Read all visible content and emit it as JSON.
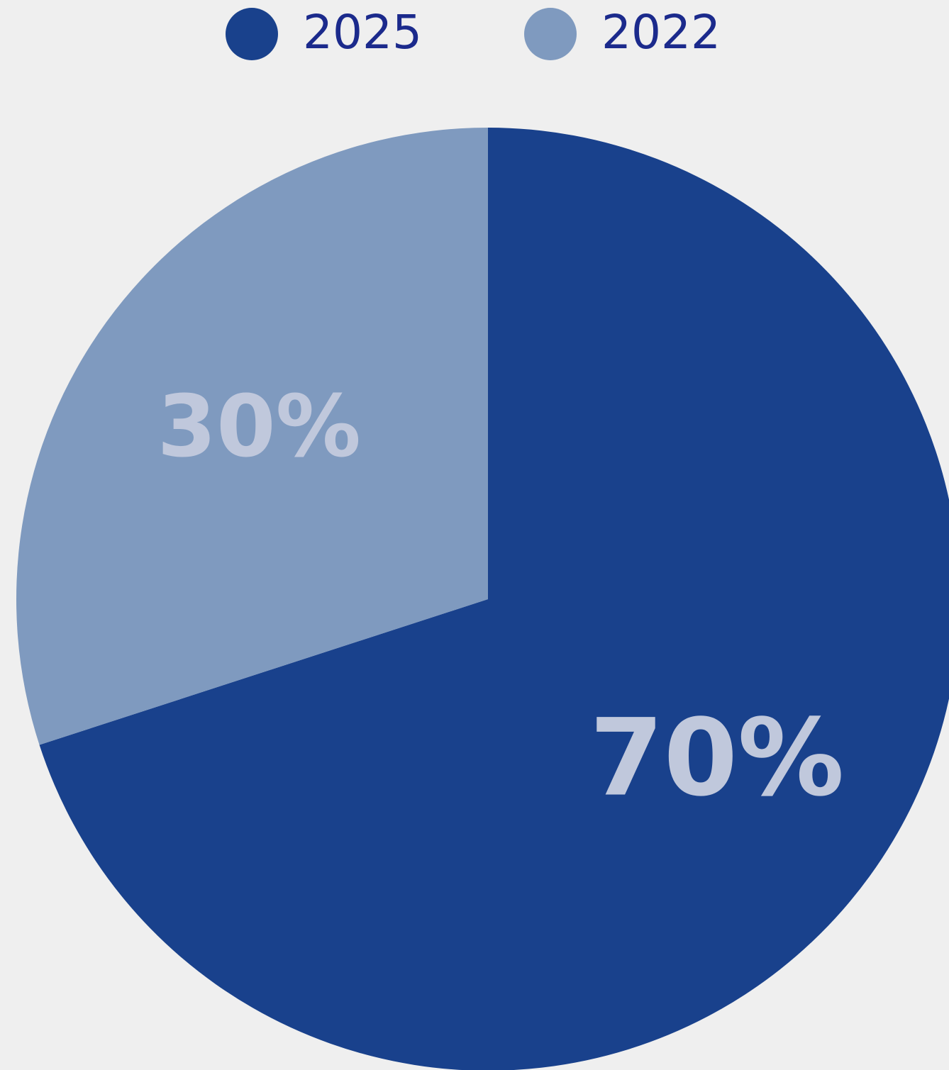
{
  "chart_data": {
    "type": "pie",
    "categories": [
      "2025",
      "2022"
    ],
    "values": [
      70,
      30
    ],
    "value_labels": [
      "70%",
      "30%"
    ],
    "colors": [
      "#19418c",
      "#7f9abf"
    ],
    "label_color": "#c0c8dc",
    "legend_text_color": "#1b2a8c"
  }
}
